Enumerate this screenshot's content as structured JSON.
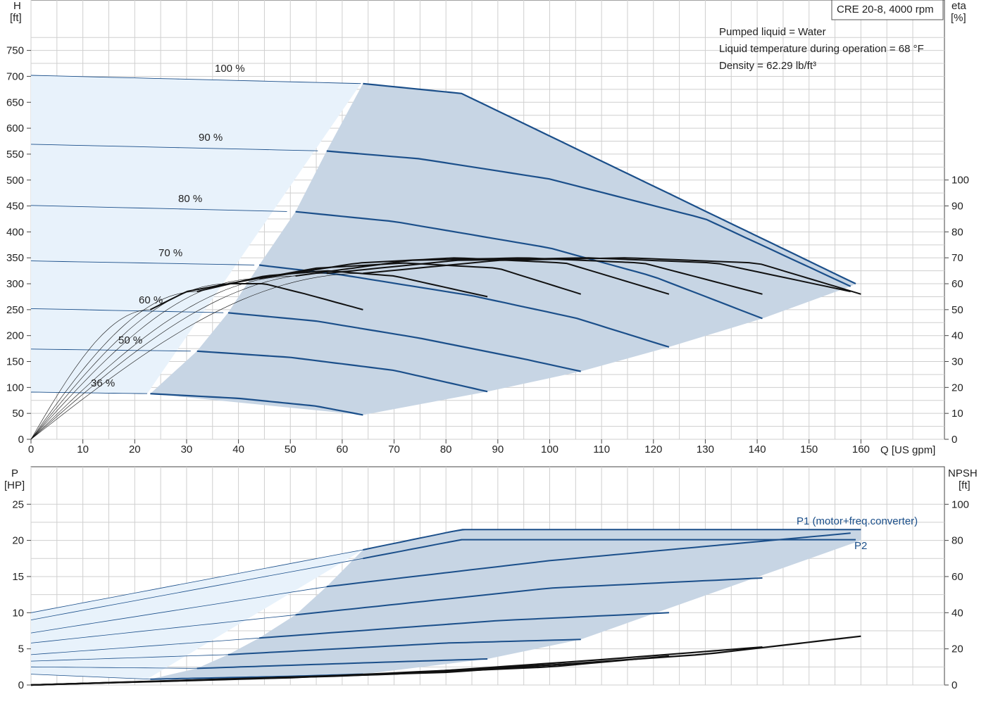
{
  "pump_title": "CRE 20-8, 4000 rpm",
  "info_lines": [
    "Pumped liquid = Water",
    "Liquid temperature during operation = 68 °F",
    "Density = 62.29 lb/ft³"
  ],
  "colors": {
    "curve": "#1b4f8a",
    "op_area": "#c7d5e4",
    "ext_area": "#e8f2fb",
    "eff": "#111111",
    "grid": "#cfcfcf"
  },
  "axes": {
    "q_label": "Q [US gpm]",
    "h_label_1": "H",
    "h_label_2": "[ft]",
    "eta_label_1": "eta",
    "eta_label_2": "[%]",
    "p_label_1": "P",
    "p_label_2": "[HP]",
    "npsh_label_1": "NPSH",
    "npsh_label_2": "[ft]",
    "q_ticks": [
      "0",
      "10",
      "20",
      "30",
      "40",
      "50",
      "60",
      "70",
      "80",
      "90",
      "100",
      "110",
      "120",
      "130",
      "140",
      "150",
      "160"
    ],
    "h_ticks": [
      "0",
      "50",
      "100",
      "150",
      "200",
      "250",
      "300",
      "350",
      "400",
      "450",
      "500",
      "550",
      "600",
      "650",
      "700",
      "750"
    ],
    "eta_ticks": [
      "0",
      "10",
      "20",
      "30",
      "40",
      "50",
      "60",
      "70",
      "80",
      "90",
      "100"
    ],
    "p_ticks": [
      "0",
      "5",
      "10",
      "15",
      "20",
      "25"
    ],
    "npsh_ticks": [
      "0",
      "20",
      "40",
      "60",
      "80",
      "100"
    ]
  },
  "speed_labels": [
    "100 %",
    "90 %",
    "80 %",
    "70 %",
    "60 %",
    "50 %",
    "36 %"
  ],
  "power_labels": {
    "p1": "P1 (motor+freq.converter)",
    "p2": "P2"
  },
  "chart_data": [
    {
      "type": "line",
      "title": "CRE 20-8, 4000 rpm",
      "xlabel": "Q [US gpm]",
      "ylabel": "H [ft]",
      "y2label": "eta [%]",
      "xlim": [
        0,
        165
      ],
      "ylim": [
        0,
        780
      ],
      "y2lim": [
        0,
        100
      ],
      "grid": true,
      "series": [
        {
          "name": "100 %",
          "x": [
            0,
            64,
            83,
            159
          ],
          "y": [
            702,
            686,
            667,
            300
          ],
          "op_from": 64
        },
        {
          "name": "90 %",
          "x": [
            0,
            57,
            75,
            100,
            130,
            158
          ],
          "y": [
            569,
            556,
            541,
            502,
            425,
            295
          ],
          "op_from": 57
        },
        {
          "name": "80 %",
          "x": [
            0,
            51,
            70,
            100,
            120,
            141
          ],
          "y": [
            451,
            439,
            420,
            369,
            314,
            233
          ],
          "op_from": 51
        },
        {
          "name": "70 %",
          "x": [
            0,
            44,
            60,
            85,
            105,
            123
          ],
          "y": [
            344,
            336,
            317,
            277,
            234,
            178
          ],
          "op_from": 44
        },
        {
          "name": "60 %",
          "x": [
            0,
            38,
            55,
            75,
            95,
            106
          ],
          "y": [
            252,
            244,
            228,
            195,
            155,
            131
          ],
          "op_from": 38
        },
        {
          "name": "50 %",
          "x": [
            0,
            32,
            50,
            70,
            88
          ],
          "y": [
            174,
            170,
            158,
            133,
            92
          ],
          "op_from": 32
        },
        {
          "name": "36 %",
          "x": [
            0,
            23,
            40,
            55,
            64
          ],
          "y": [
            91,
            88,
            79,
            64,
            47
          ],
          "op_from": 23
        }
      ],
      "efficiency_series": [
        {
          "x": [
            23,
            30,
            38,
            45,
            53,
            64
          ],
          "eta": [
            50,
            57,
            60,
            60,
            56,
            50
          ]
        },
        {
          "x": [
            32,
            45,
            57,
            70,
            88
          ],
          "eta": [
            57,
            63,
            65,
            63,
            55
          ]
        },
        {
          "x": [
            38,
            55,
            72,
            90,
            106
          ],
          "eta": [
            60,
            66,
            68,
            66,
            56
          ]
        },
        {
          "x": [
            44,
            63,
            82,
            103,
            123
          ],
          "eta": [
            62,
            68,
            70,
            68,
            56
          ]
        },
        {
          "x": [
            51,
            73,
            95,
            118,
            141
          ],
          "eta": [
            63,
            69,
            70,
            68,
            56
          ]
        },
        {
          "x": [
            57,
            82,
            107,
            132,
            158
          ],
          "eta": [
            64,
            69,
            70,
            68,
            57
          ]
        },
        {
          "x": [
            64,
            90,
            115,
            140,
            160
          ],
          "eta": [
            64,
            69,
            70,
            68,
            56
          ]
        }
      ]
    },
    {
      "type": "line",
      "xlabel": "Q [US gpm]",
      "ylabel": "P [HP]",
      "y2label": "NPSH [ft]",
      "xlim": [
        0,
        165
      ],
      "ylim": [
        0,
        27
      ],
      "y2lim": [
        0,
        108
      ],
      "grid": true,
      "power_series": [
        {
          "name": "P1 (motor+freq.converter)",
          "x": [
            0,
            64,
            83,
            160
          ],
          "y": [
            10.0,
            18.7,
            21.5,
            21.5
          ]
        },
        {
          "name": "P2",
          "x": [
            0,
            64,
            83,
            159
          ],
          "y": [
            9.0,
            17.5,
            20.1,
            20.1
          ]
        },
        {
          "x": [
            0,
            57,
            100,
            158
          ],
          "y": [
            7.2,
            13.6,
            17.2,
            21.0
          ]
        },
        {
          "x": [
            0,
            51,
            100,
            141
          ],
          "y": [
            5.8,
            9.7,
            13.4,
            14.8
          ]
        },
        {
          "x": [
            0,
            44,
            90,
            123
          ],
          "y": [
            4.2,
            6.5,
            8.9,
            10.0
          ]
        },
        {
          "x": [
            0,
            38,
            80,
            106
          ],
          "y": [
            3.3,
            4.2,
            5.8,
            6.3
          ]
        },
        {
          "x": [
            0,
            32,
            70,
            88
          ],
          "y": [
            2.5,
            2.3,
            3.2,
            3.6
          ]
        },
        {
          "x": [
            0,
            23,
            50,
            64
          ],
          "y": [
            1.5,
            0.8,
            1.2,
            1.5
          ]
        }
      ],
      "npsh_series": [
        {
          "x": [
            0,
            50,
            80,
            106
          ],
          "npsh": [
            0,
            4,
            8,
            12
          ]
        },
        {
          "x": [
            0,
            60,
            100,
            123
          ],
          "npsh": [
            0,
            5,
            10,
            16
          ]
        },
        {
          "x": [
            0,
            70,
            110,
            141
          ],
          "npsh": [
            0,
            6,
            14,
            21
          ]
        },
        {
          "x": [
            0,
            80,
            130,
            160
          ],
          "npsh": [
            0,
            7,
            17,
            27
          ]
        }
      ]
    }
  ]
}
